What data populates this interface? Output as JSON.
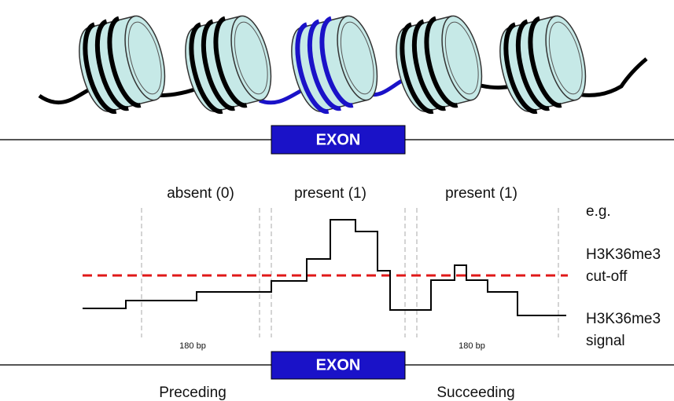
{
  "exon_top": {
    "label": "EXON"
  },
  "regions": [
    {
      "label": "absent (0)"
    },
    {
      "label": "present (1)"
    },
    {
      "label": "present (1)"
    }
  ],
  "legend": {
    "example": "e.g.",
    "cutoff": [
      "H3K36me3",
      "cut-off"
    ],
    "signal": [
      "H3K36me3",
      "signal"
    ]
  },
  "spacing_labels": [
    "180 bp",
    "180 bp"
  ],
  "exon_bottom": {
    "label": "EXON"
  },
  "flanks": [
    "Preceding",
    "Succeeding"
  ]
}
